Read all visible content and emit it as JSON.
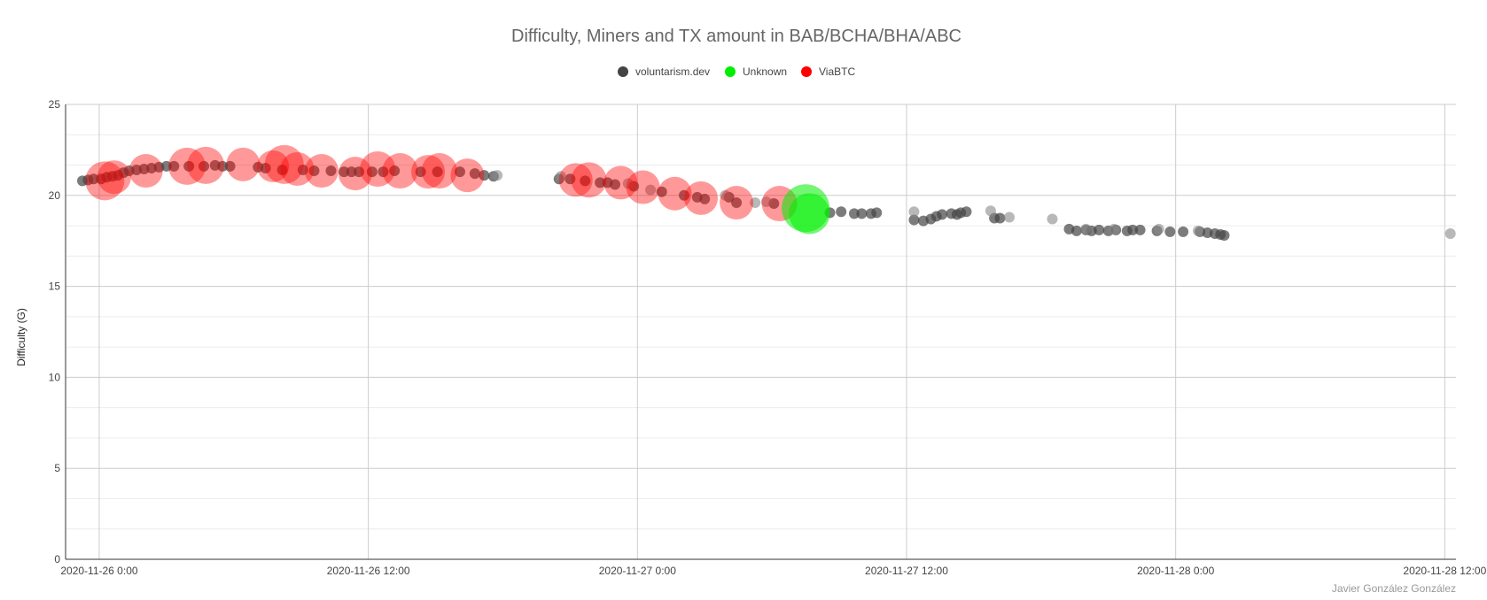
{
  "chart_data": {
    "type": "scatter",
    "title": "Difficulty, Miners and TX amount in BAB/BCHA/BHA/ABC",
    "ylabel": "Difficulty (G)",
    "xlabel": "",
    "ylim": [
      0,
      25
    ],
    "yticks": [
      0,
      5,
      10,
      15,
      20,
      25
    ],
    "xlim": [
      "2020-11-25T22:30",
      "2020-11-28T12:30"
    ],
    "xticks": [
      {
        "t": "2020-11-26T00:00",
        "label": "2020-11-26 0:00"
      },
      {
        "t": "2020-11-26T12:00",
        "label": "2020-11-26 12:00"
      },
      {
        "t": "2020-11-27T00:00",
        "label": "2020-11-27 0:00"
      },
      {
        "t": "2020-11-27T12:00",
        "label": "2020-11-27 12:00"
      },
      {
        "t": "2020-11-28T00:00",
        "label": "2020-11-28 0:00"
      },
      {
        "t": "2020-11-28T12:00",
        "label": "2020-11-28 12:00"
      }
    ],
    "grid": true,
    "legend_position": "top-center",
    "credit": "Javier González González",
    "series": [
      {
        "name": "voluntarism.dev",
        "color": "#444444",
        "points": [
          [
            "2020-11-25T23:15",
            20.8
          ],
          [
            "2020-11-25T23:30",
            20.85
          ],
          [
            "2020-11-25T23:45",
            20.9
          ],
          [
            "2020-11-26T00:05",
            20.9
          ],
          [
            "2020-11-26T00:20",
            21.0
          ],
          [
            "2020-11-26T00:35",
            21.05
          ],
          [
            "2020-11-26T00:50",
            21.1
          ],
          [
            "2020-11-26T01:05",
            21.25
          ],
          [
            "2020-11-26T01:20",
            21.35
          ],
          [
            "2020-11-26T01:40",
            21.4
          ],
          [
            "2020-11-26T02:00",
            21.45
          ],
          [
            "2020-11-26T02:20",
            21.5
          ],
          [
            "2020-11-26T02:40",
            21.55
          ],
          [
            "2020-11-26T03:00",
            21.6
          ],
          [
            "2020-11-26T03:20",
            21.6
          ],
          [
            "2020-11-26T04:00",
            21.6
          ],
          [
            "2020-11-26T04:40",
            21.6
          ],
          [
            "2020-11-26T05:10",
            21.65
          ],
          [
            "2020-11-26T05:30",
            21.6
          ],
          [
            "2020-11-26T05:50",
            21.6
          ],
          [
            "2020-11-26T07:05",
            21.55
          ],
          [
            "2020-11-26T07:25",
            21.5
          ],
          [
            "2020-11-26T08:10",
            21.4
          ],
          [
            "2020-11-26T09:05",
            21.4
          ],
          [
            "2020-11-26T09:35",
            21.35
          ],
          [
            "2020-11-26T10:20",
            21.35
          ],
          [
            "2020-11-26T10:55",
            21.3
          ],
          [
            "2020-11-26T11:15",
            21.3
          ],
          [
            "2020-11-26T11:35",
            21.3
          ],
          [
            "2020-11-26T12:10",
            21.3
          ],
          [
            "2020-11-26T12:40",
            21.3
          ],
          [
            "2020-11-26T13:10",
            21.35
          ],
          [
            "2020-11-26T14:20",
            21.3
          ],
          [
            "2020-11-26T15:05",
            21.3
          ],
          [
            "2020-11-26T16:05",
            21.3
          ],
          [
            "2020-11-26T16:45",
            21.2
          ],
          [
            "2020-11-26T17:10",
            21.1
          ],
          [
            "2020-11-26T17:35",
            21.05
          ],
          [
            "2020-11-26T20:30",
            20.9
          ],
          [
            "2020-11-26T21:00",
            20.9
          ],
          [
            "2020-11-26T21:40",
            20.8
          ],
          [
            "2020-11-26T22:20",
            20.7
          ],
          [
            "2020-11-26T22:40",
            20.7
          ],
          [
            "2020-11-26T23:00",
            20.6
          ],
          [
            "2020-11-26T23:50",
            20.5
          ],
          [
            "2020-11-27T01:05",
            20.2
          ],
          [
            "2020-11-27T02:05",
            20.0
          ],
          [
            "2020-11-27T02:40",
            19.9
          ],
          [
            "2020-11-27T03:00",
            19.8
          ],
          [
            "2020-11-27T04:05",
            19.9
          ],
          [
            "2020-11-27T04:25",
            19.6
          ],
          [
            "2020-11-27T06:05",
            19.55
          ],
          [
            "2020-11-27T08:35",
            19.05
          ],
          [
            "2020-11-27T09:05",
            19.1
          ],
          [
            "2020-11-27T09:40",
            19.0
          ],
          [
            "2020-11-27T10:00",
            19.0
          ],
          [
            "2020-11-27T10:25",
            19.0
          ],
          [
            "2020-11-27T10:40",
            19.05
          ],
          [
            "2020-11-27T12:20",
            18.65
          ],
          [
            "2020-11-27T12:45",
            18.6
          ],
          [
            "2020-11-27T13:05",
            18.7
          ],
          [
            "2020-11-27T13:20",
            18.85
          ],
          [
            "2020-11-27T13:35",
            18.95
          ],
          [
            "2020-11-27T14:00",
            19.0
          ],
          [
            "2020-11-27T14:15",
            18.95
          ],
          [
            "2020-11-27T14:25",
            19.05
          ],
          [
            "2020-11-27T14:40",
            19.1
          ],
          [
            "2020-11-27T15:55",
            18.75
          ],
          [
            "2020-11-27T16:10",
            18.75
          ],
          [
            "2020-11-27T19:15",
            18.15
          ],
          [
            "2020-11-27T19:35",
            18.05
          ],
          [
            "2020-11-27T20:00",
            18.1
          ],
          [
            "2020-11-27T20:15",
            18.05
          ],
          [
            "2020-11-27T20:35",
            18.1
          ],
          [
            "2020-11-27T21:00",
            18.05
          ],
          [
            "2020-11-27T21:20",
            18.1
          ],
          [
            "2020-11-27T21:50",
            18.05
          ],
          [
            "2020-11-27T22:05",
            18.1
          ],
          [
            "2020-11-27T22:25",
            18.1
          ],
          [
            "2020-11-27T23:10",
            18.05
          ],
          [
            "2020-11-27T23:45",
            18.0
          ],
          [
            "2020-11-28T00:20",
            18.0
          ],
          [
            "2020-11-28T01:05",
            18.0
          ],
          [
            "2020-11-28T01:25",
            17.95
          ],
          [
            "2020-11-28T01:45",
            17.9
          ],
          [
            "2020-11-28T02:00",
            17.85
          ],
          [
            "2020-11-28T02:10",
            17.8
          ]
        ]
      },
      {
        "name": "voluntarism.dev",
        "color": "#888888",
        "points": [
          [
            "2020-11-26T17:45",
            21.1
          ],
          [
            "2020-11-26T20:35",
            21.05
          ],
          [
            "2020-11-26T23:35",
            20.65
          ],
          [
            "2020-11-27T00:35",
            20.3
          ],
          [
            "2020-11-27T03:55",
            20.0
          ],
          [
            "2020-11-27T05:15",
            19.6
          ],
          [
            "2020-11-27T05:45",
            19.65
          ],
          [
            "2020-11-27T12:20",
            19.1
          ],
          [
            "2020-11-27T15:45",
            19.15
          ],
          [
            "2020-11-27T16:35",
            18.8
          ],
          [
            "2020-11-27T18:30",
            18.7
          ],
          [
            "2020-11-27T20:00",
            18.15
          ],
          [
            "2020-11-27T21:15",
            18.15
          ],
          [
            "2020-11-27T23:15",
            18.15
          ],
          [
            "2020-11-28T01:00",
            18.05
          ],
          [
            "2020-11-28T12:15",
            17.9
          ]
        ]
      },
      {
        "name": "ViaBTC",
        "color": "#ff0000",
        "points": [
          [
            "2020-11-26T00:15",
            20.8,
            22
          ],
          [
            "2020-11-26T00:40",
            21.0,
            19
          ],
          [
            "2020-11-26T02:05",
            21.35,
            19
          ],
          [
            "2020-11-26T03:55",
            21.6,
            21
          ],
          [
            "2020-11-26T04:45",
            21.65,
            21
          ],
          [
            "2020-11-26T06:25",
            21.7,
            19
          ],
          [
            "2020-11-26T07:45",
            21.6,
            18
          ],
          [
            "2020-11-26T08:15",
            21.7,
            22
          ],
          [
            "2020-11-26T08:50",
            21.45,
            19
          ],
          [
            "2020-11-26T09:55",
            21.35,
            19
          ],
          [
            "2020-11-26T11:25",
            21.2,
            19
          ],
          [
            "2020-11-26T12:25",
            21.45,
            20
          ],
          [
            "2020-11-26T13:25",
            21.35,
            20
          ],
          [
            "2020-11-26T14:40",
            21.3,
            19
          ],
          [
            "2020-11-26T15:10",
            21.35,
            20
          ],
          [
            "2020-11-26T16:25",
            21.1,
            19
          ],
          [
            "2020-11-26T21:15",
            20.85,
            19
          ],
          [
            "2020-11-26T21:50",
            20.85,
            20
          ],
          [
            "2020-11-26T23:15",
            20.7,
            19
          ],
          [
            "2020-11-27T00:15",
            20.45,
            19
          ],
          [
            "2020-11-27T01:40",
            20.1,
            19
          ],
          [
            "2020-11-27T02:50",
            19.85,
            19
          ],
          [
            "2020-11-27T04:25",
            19.6,
            19
          ],
          [
            "2020-11-27T06:20",
            19.55,
            20
          ]
        ]
      },
      {
        "name": "Unknown",
        "color": "#00ee00",
        "points": [
          [
            "2020-11-27T07:30",
            19.3,
            27
          ],
          [
            "2020-11-27T07:40",
            19.0,
            23
          ]
        ]
      }
    ]
  },
  "legend": {
    "items": [
      {
        "label": "voluntarism.dev",
        "color": "#444444"
      },
      {
        "label": "Unknown",
        "color": "#00ee00"
      },
      {
        "label": "ViaBTC",
        "color": "#ff0000"
      }
    ]
  }
}
